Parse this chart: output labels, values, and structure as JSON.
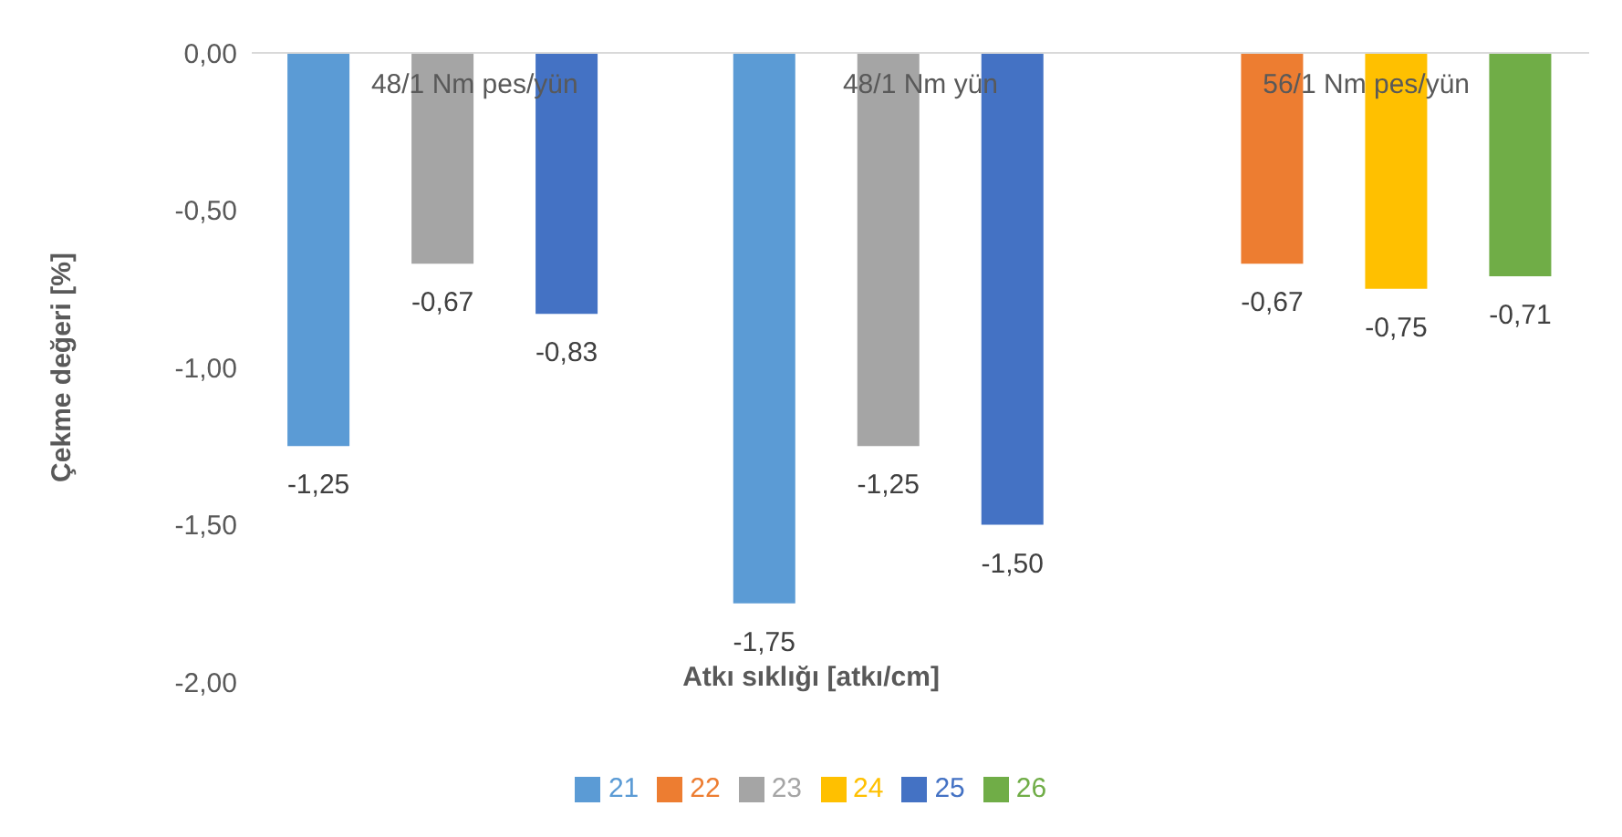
{
  "chart_data": {
    "type": "bar",
    "xlabel": "Atkı sıklığı [atkı/cm]",
    "ylabel": "Çekme değeri [%]",
    "categories": [
      "48/1 Nm pes/yün",
      "48/1 Nm yün",
      "56/1 Nm pes/yün"
    ],
    "series": [
      {
        "name": "21",
        "color": "#5b9bd5",
        "values": [
          -1.25,
          -1.75,
          null
        ],
        "value_labels": [
          "-1,25",
          "-1,75",
          null
        ]
      },
      {
        "name": "22",
        "color": "#ed7d31",
        "values": [
          null,
          null,
          -0.67
        ],
        "value_labels": [
          null,
          null,
          "-0,67"
        ]
      },
      {
        "name": "23",
        "color": "#a5a5a5",
        "values": [
          -0.67,
          -1.25,
          null
        ],
        "value_labels": [
          "-0,67",
          "-1,25",
          null
        ]
      },
      {
        "name": "24",
        "color": "#ffc000",
        "values": [
          null,
          null,
          -0.75
        ],
        "value_labels": [
          null,
          null,
          "-0,75"
        ]
      },
      {
        "name": "25",
        "color": "#4472c4",
        "values": [
          -0.83,
          -1.5,
          null
        ],
        "value_labels": [
          "-0,83",
          "-1,50",
          null
        ]
      },
      {
        "name": "26",
        "color": "#70ad47",
        "values": [
          null,
          null,
          -0.71
        ],
        "value_labels": [
          null,
          null,
          "-0,71"
        ]
      }
    ],
    "ylim": [
      -2,
      0
    ],
    "yticks": [
      {
        "value": -2,
        "label": "-2,00"
      },
      {
        "value": -1.5,
        "label": "-1,50"
      },
      {
        "value": -1,
        "label": "-1,00"
      },
      {
        "value": -0.5,
        "label": "-0,50"
      },
      {
        "value": 0,
        "label": "0,00"
      }
    ],
    "grid": false,
    "legend": "bottom"
  }
}
